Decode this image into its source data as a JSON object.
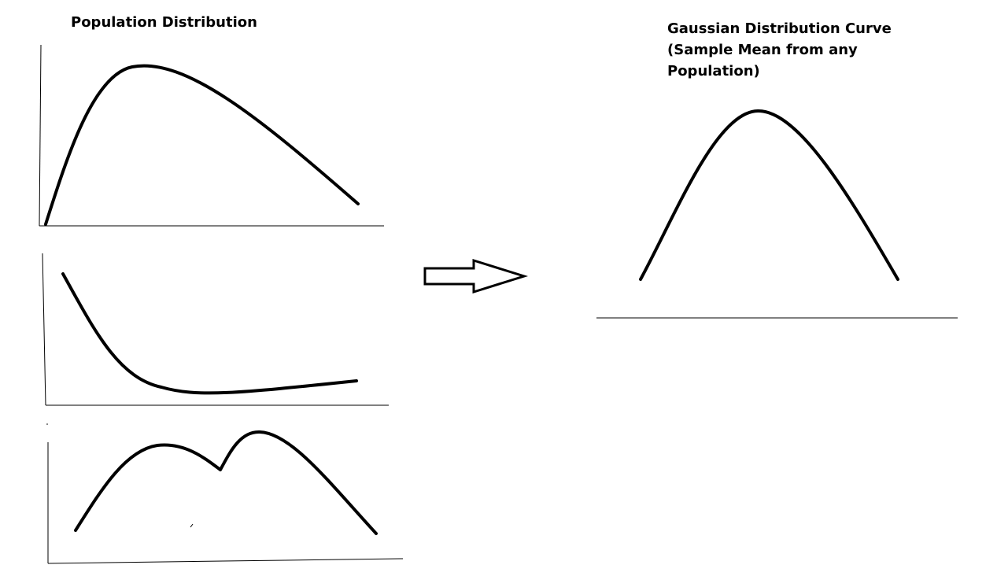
{
  "left_title": "Population Distribution",
  "right_title_lines": [
    "Gaussian Distribution Curve",
    "(Sample Mean from any",
    "Population)"
  ],
  "colors": {
    "ink": "#000000",
    "background": "#ffffff"
  },
  "arrow_icon": "right-arrow-icon"
}
